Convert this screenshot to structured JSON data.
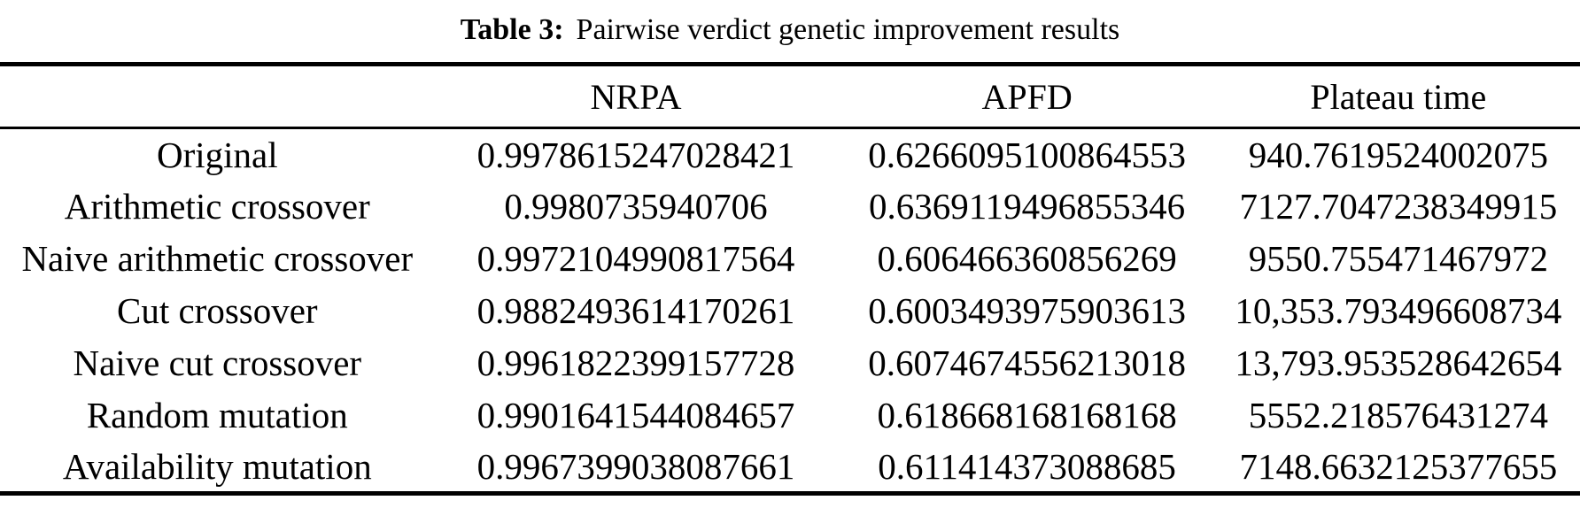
{
  "chart_data": {
    "type": "table",
    "title": {
      "prefix": "Table 3:",
      "text": "Pairwise verdict genetic improvement results"
    },
    "columns": [
      "",
      "NRPA",
      "APFD",
      "Plateau time"
    ],
    "rows": [
      {
        "label": "Original",
        "nrpa": "0.9978615247028421",
        "apfd": "0.6266095100864553",
        "plateau": "940.7619524002075"
      },
      {
        "label": "Arithmetic crossover",
        "nrpa": "0.9980735940706",
        "apfd": "0.6369119496855346",
        "plateau": "7127.7047238349915"
      },
      {
        "label": "Naive arithmetic crossover",
        "nrpa": "0.9972104990817564",
        "apfd": "0.606466360856269",
        "plateau": "9550.755471467972"
      },
      {
        "label": "Cut crossover",
        "nrpa": "0.9882493614170261",
        "apfd": "0.6003493975903613",
        "plateau": "10,353.793496608734"
      },
      {
        "label": "Naive cut crossover",
        "nrpa": "0.9961822399157728",
        "apfd": "0.6074674556213018",
        "plateau": "13,793.953528642654"
      },
      {
        "label": "Random mutation",
        "nrpa": "0.9901641544084657",
        "apfd": "0.618668168168168",
        "plateau": "5552.218576431274"
      },
      {
        "label": "Availability mutation",
        "nrpa": "0.9967399038087661",
        "apfd": "0.611414373088685",
        "plateau": "7148.6632125377655"
      }
    ],
    "layout": {
      "grid": "horizontal-rules-only",
      "rule_color": "#000000",
      "text_color": "#000000",
      "background_color": "#ffffff"
    }
  }
}
